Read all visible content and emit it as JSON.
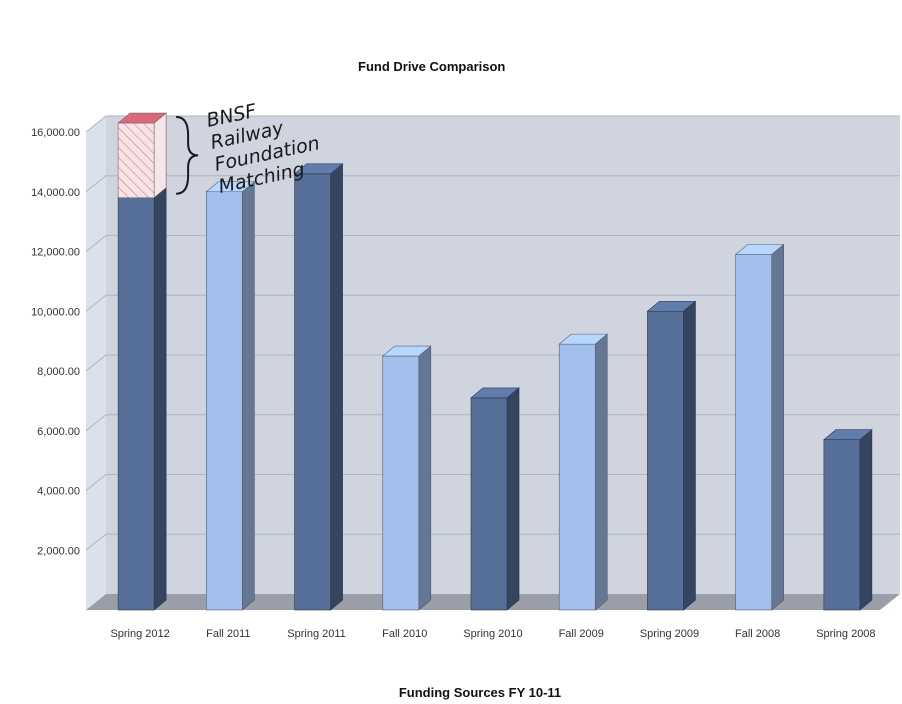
{
  "chart_data": {
    "type": "bar",
    "title": "Fund Drive Comparison",
    "xlabel": "Funding Sources FY 10-11",
    "ylabel": "",
    "ylim": [
      0,
      16000
    ],
    "yticks": [
      "2,000.00",
      "4,000.00",
      "6,000.00",
      "8,000.00",
      "10,000.00",
      "12,000.00",
      "14,000.00",
      "16,000.00"
    ],
    "ytick_values": [
      2000,
      4000,
      6000,
      8000,
      10000,
      12000,
      14000,
      16000
    ],
    "categories": [
      "Spring 2012",
      "Fall 2011",
      "Spring 2011",
      "Fall 2010",
      "Spring 2010",
      "Fall 2009",
      "Spring 2009",
      "Fall 2008",
      "Spring 2008"
    ],
    "values": [
      13800,
      14000,
      14600,
      8500,
      7100,
      8900,
      10000,
      11900,
      5700
    ],
    "bar_kind": [
      "spring",
      "fall",
      "spring",
      "fall",
      "spring",
      "fall",
      "spring",
      "fall",
      "spring"
    ],
    "stacked_extra": {
      "category": "Spring 2012",
      "value": 2500,
      "annotation": [
        "BNSF",
        "Railway",
        "Foundation",
        "Matching"
      ]
    },
    "grid": true,
    "colors": {
      "spring": "#56709a",
      "fall": "#a3c0ec",
      "wall": "#cfd4de",
      "floor": "#9a9ea8",
      "extra": "#f2d2d6",
      "extra_top": "#d8687c",
      "grid": "#aeb4c2"
    }
  }
}
